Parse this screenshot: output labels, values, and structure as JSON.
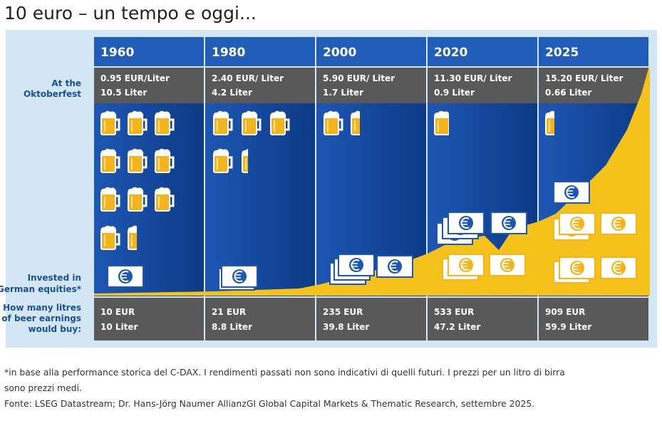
{
  "header": {
    "title": "10 euro – un tempo e oggi..."
  },
  "row_labels": {
    "oktoberfest": [
      "At the",
      "Oktoberfest"
    ],
    "invested": [
      "Invested in",
      "German equities*"
    ],
    "bought": [
      "How many litres",
      "of beer earnings",
      "would buy:"
    ]
  },
  "columns": [
    {
      "year": "1960",
      "price": "0.95 EUR/Liter",
      "litres": "10.5 Liter",
      "invested": "10 EUR",
      "bought": "10 Liter"
    },
    {
      "year": "1980",
      "price": "2.40 EUR/ Liter",
      "litres": "4.2 Liter",
      "invested": "21 EUR",
      "bought": "8.8 Liter"
    },
    {
      "year": "2000",
      "price": "5.90 EUR/ Liter",
      "litres": "1.7 Liter",
      "invested": "235 EUR",
      "bought": "39.8 Liter"
    },
    {
      "year": "2020",
      "price": "11.30 EUR/ Liter",
      "litres": "0.9 Liter",
      "invested": "533 EUR",
      "bought": "47.2 Liter"
    },
    {
      "year": "2025",
      "price": "15.20 EUR/ Liter",
      "litres": "0.66 Liter",
      "invested": "909 EUR",
      "bought": "59.9 Liter"
    }
  ],
  "footnotes": [
    "*in base alla performance storica del C-DAX. I rendimenti passati non sono indicativi di quelli futuri. I prezzi per un litro di birra",
    "sono prezzi medi.",
    "Fonte: LSEG Datastream; Dr. Hans-Jörg Naumer AllianzGI Global Capital Markets & Thematic Research, settembre 2025."
  ]
}
